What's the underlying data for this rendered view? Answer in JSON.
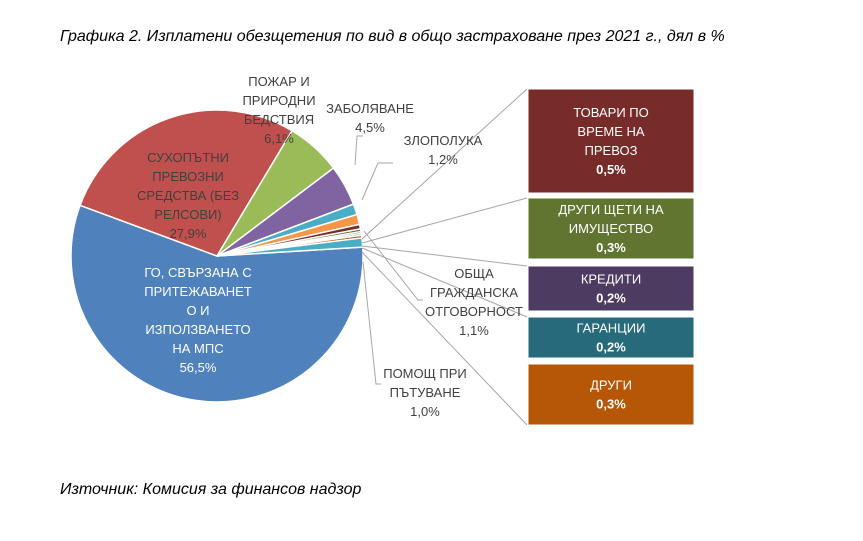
{
  "chart_data": {
    "type": "pie",
    "title": "Графика 2. Изплатени обезщетения по вид в общо застраховане през 2021 г., дял в %",
    "source": "Източник: Комисия за финансов надзор",
    "slices": [
      {
        "name": "ГО, СВЪРЗАНА С ПРИТЕЖАВАНЕТО И ИЗПОЛЗВАНЕТО НА МПС",
        "lines": [
          "ГО, СВЪРЗАНА С",
          "ПРИТЕЖАВАНЕТ",
          "О И",
          "ИЗПОЛЗВАНЕТО",
          "НА МПС"
        ],
        "value": 56.5,
        "label": "56,5%",
        "color": "#4f81bd"
      },
      {
        "name": "СУХОПЪТНИ ПРЕВОЗНИ СРЕДСТВА (БЕЗ РЕЛСОВИ)",
        "lines": [
          "СУХОПЪТНИ",
          "ПРЕВОЗНИ",
          "СРЕДСТВА (БЕЗ",
          "РЕЛСОВИ)"
        ],
        "value": 27.9,
        "label": "27,9%",
        "color": "#c0504d"
      },
      {
        "name": "ПОЖАР И ПРИРОДНИ БЕДСТВИЯ",
        "lines": [
          "ПОЖАР И",
          "ПРИРОДНИ",
          "БЕДСТВИЯ"
        ],
        "value": 6.1,
        "label": "6,1%",
        "color": "#9bbb59"
      },
      {
        "name": "ЗАБОЛЯВАНЕ",
        "lines": [
          "ЗАБОЛЯВАНЕ"
        ],
        "value": 4.5,
        "label": "4,5%",
        "color": "#8064a2"
      },
      {
        "name": "ЗЛОПОЛУКА",
        "lines": [
          "ЗЛОПОЛУКА"
        ],
        "value": 1.2,
        "label": "1,2%",
        "color": "#4bacc6"
      },
      {
        "name": "ОБЩА ГРАЖДАНСКА ОТГОВОРНОСТ",
        "lines": [
          "ОБЩА",
          "ГРАЖДАНСКА",
          "ОТГОВОРНОСТ"
        ],
        "value": 1.1,
        "label": "1,1%",
        "color": "#f79646"
      },
      {
        "name": "ТОВАРИ ПО ВРЕМЕ НА ПРЕВОЗ",
        "lines": [
          "ТОВАРИ ПО",
          "ВРЕМЕ НА",
          "ПРЕВОЗ"
        ],
        "value": 0.5,
        "label": "0,5%",
        "color": "#772c2a"
      },
      {
        "name": "ДРУГИ ЩЕТИ НА ИМУЩЕСТВО",
        "lines": [
          "ДРУГИ ЩЕТИ НА",
          "ИМУЩЕСТВО"
        ],
        "value": 0.3,
        "label": "0,3%",
        "color": "#5f7530"
      },
      {
        "name": "КРЕДИТИ",
        "lines": [
          "КРЕДИТИ"
        ],
        "value": 0.2,
        "label": "0,2%",
        "color": "#4d3b62"
      },
      {
        "name": "ГАРАНЦИИ",
        "lines": [
          "ГАРАНЦИИ"
        ],
        "value": 0.2,
        "label": "0,2%",
        "color": "#276a7c"
      },
      {
        "name": "ДРУГИ",
        "lines": [
          "ДРУГИ"
        ],
        "value": 0.3,
        "label": "0,3%",
        "color": "#b65708"
      },
      {
        "name": "ПОМОЩ ПРИ ПЪТУВАНЕ",
        "lines": [
          "ПОМОЩ ПРИ",
          "ПЪТУВАНЕ"
        ],
        "value": 1.0,
        "label": "1,0%",
        "color": "#4bacc6"
      }
    ]
  }
}
